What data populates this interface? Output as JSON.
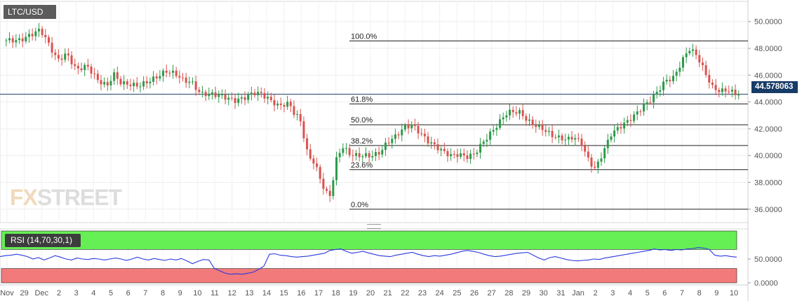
{
  "symbol": "LTC/USD",
  "watermark": {
    "part1": "FX",
    "part2": "STREET"
  },
  "current_price_label": "44.578063",
  "rsi_label": "RSI (14,70,30,1)",
  "colors": {
    "up": "#2e9b4a",
    "down": "#d9534f",
    "rsi_line": "#2b3ae0",
    "overbought": "#66ee55",
    "oversold": "#f27a7a",
    "hline": "#163b66"
  },
  "chart_data": [
    {
      "type": "candlestick",
      "title": "LTC/USD",
      "ylim": [
        35.0,
        51.5
      ],
      "y_ticks": [
        "36.0000",
        "38.0000",
        "40.0000",
        "42.0000",
        "44.0000",
        "46.0000",
        "48.0000",
        "50.0000"
      ],
      "x_ticks": [
        "Nov",
        "29",
        "Dec",
        "2",
        "3",
        "4",
        "5",
        "6",
        "7",
        "8",
        "9",
        "10",
        "11",
        "12",
        "13",
        "14",
        "15",
        "16",
        "17",
        "18",
        "19",
        "20",
        "21",
        "22",
        "23",
        "24",
        "25",
        "26",
        "27",
        "28",
        "29",
        "30",
        "31",
        "Jan",
        "2",
        "3",
        "4",
        "5",
        "6",
        "7",
        "8",
        "9",
        "10"
      ],
      "current_price": 44.578063,
      "fibonacci": [
        {
          "label": "100.0%",
          "value": 48.55
        },
        {
          "label": "61.8%",
          "value": 43.85
        },
        {
          "label": "50.0%",
          "value": 42.3
        },
        {
          "label": "38.2%",
          "value": 40.75
        },
        {
          "label": "23.6%",
          "value": 38.95
        },
        {
          "label": "0.0%",
          "value": 36.0
        }
      ],
      "path": [
        [
          0,
          48.6
        ],
        [
          0.5,
          48.9
        ],
        [
          1.3,
          49.4
        ],
        [
          1.7,
          48.6
        ],
        [
          2.4,
          47.1
        ],
        [
          3,
          47.6
        ],
        [
          3.6,
          46.4
        ],
        [
          4.3,
          46.7
        ],
        [
          5,
          45.6
        ],
        [
          5.6,
          45.2
        ],
        [
          6,
          46.1
        ],
        [
          6.5,
          45.4
        ],
        [
          7.1,
          45.3
        ],
        [
          7.6,
          45.2
        ],
        [
          8.2,
          45.5
        ],
        [
          8.7,
          45.8
        ],
        [
          9.4,
          46.3
        ],
        [
          10,
          46.1
        ],
        [
          10.5,
          45.6
        ],
        [
          11,
          45.5
        ],
        [
          11.6,
          44.6
        ],
        [
          12.2,
          44.6
        ],
        [
          12.8,
          44.5
        ],
        [
          13.3,
          44.3
        ],
        [
          13.8,
          44.1
        ],
        [
          14.4,
          44.3
        ],
        [
          15,
          44.7
        ],
        [
          15.5,
          44.6
        ],
        [
          16,
          44.2
        ],
        [
          16.6,
          43.7
        ],
        [
          17.3,
          43.9
        ],
        [
          17.6,
          43.2
        ],
        [
          18,
          42.7
        ],
        [
          18.5,
          40.0
        ],
        [
          18.9,
          39.5
        ],
        [
          19.2,
          38.6
        ],
        [
          19.6,
          37.3
        ],
        [
          19.9,
          37.0
        ],
        [
          20,
          37.3
        ],
        [
          20.3,
          39.6
        ],
        [
          20.7,
          40.7
        ],
        [
          21.2,
          40.1
        ],
        [
          21.6,
          40.0
        ],
        [
          22.2,
          40.0
        ],
        [
          22.7,
          40.0
        ],
        [
          23.2,
          40.3
        ],
        [
          23.6,
          41.0
        ],
        [
          24.1,
          41.4
        ],
        [
          24.7,
          42.1
        ],
        [
          25.2,
          42.3
        ],
        [
          25.7,
          41.7
        ],
        [
          26.2,
          41.1
        ],
        [
          26.7,
          40.7
        ],
        [
          27.2,
          40.3
        ],
        [
          27.7,
          40.0
        ],
        [
          28.2,
          40.1
        ],
        [
          28.7,
          39.9
        ],
        [
          29.2,
          40.1
        ],
        [
          29.7,
          40.9
        ],
        [
          30.2,
          41.6
        ],
        [
          30.7,
          42.3
        ],
        [
          31.2,
          43.1
        ],
        [
          31.6,
          43.3
        ],
        [
          32.2,
          43.2
        ],
        [
          32.6,
          42.6
        ],
        [
          33.2,
          42.2
        ],
        [
          33.6,
          42.0
        ],
        [
          34.2,
          41.5
        ],
        [
          34.7,
          41.3
        ],
        [
          35.2,
          41.2
        ],
        [
          35.6,
          41.4
        ],
        [
          36.1,
          40.9
        ],
        [
          36.6,
          39.5
        ],
        [
          37,
          39.0
        ],
        [
          37.5,
          40.3
        ],
        [
          38,
          41.6
        ],
        [
          38.5,
          42.1
        ],
        [
          39,
          42.5
        ],
        [
          39.5,
          43.0
        ],
        [
          40,
          43.6
        ],
        [
          40.5,
          44.1
        ],
        [
          41,
          44.8
        ],
        [
          41.5,
          45.6
        ],
        [
          42,
          45.8
        ],
        [
          42.5,
          46.9
        ],
        [
          43,
          48.0
        ],
        [
          43.5,
          47.5
        ],
        [
          44,
          46.3
        ],
        [
          44.5,
          45.1
        ],
        [
          45,
          44.8
        ],
        [
          45.5,
          44.9
        ],
        [
          46,
          44.6
        ]
      ],
      "x_range": [
        -1.3,
        46.8
      ]
    },
    {
      "type": "line",
      "title": "RSI (14,70,30,1)",
      "ylim": [
        0,
        100
      ],
      "y_ticks": [
        "0.0000",
        "50.0000"
      ],
      "bands": {
        "overbought": 70,
        "oversold": 30
      },
      "values": [
        55,
        57,
        58,
        60,
        58,
        55,
        50,
        53,
        48,
        52,
        57,
        54,
        50,
        48,
        52,
        50,
        49,
        51,
        50,
        48,
        50,
        52,
        50,
        47,
        50,
        54,
        50,
        48,
        51,
        49,
        47,
        50,
        48,
        51,
        46,
        40,
        45,
        49,
        48,
        30,
        25,
        20,
        18,
        19,
        18,
        20,
        22,
        28,
        35,
        60,
        61,
        58,
        57,
        55,
        54,
        55,
        56,
        58,
        60,
        62,
        68,
        70,
        71,
        66,
        62,
        64,
        66,
        63,
        60,
        57,
        56,
        55,
        58,
        60,
        62,
        64,
        60,
        57,
        55,
        57,
        56,
        58,
        60,
        63,
        66,
        68,
        66,
        64,
        60,
        57,
        55,
        56,
        58,
        60,
        62,
        63,
        64,
        58,
        52,
        48,
        53,
        55,
        52,
        49,
        47,
        46,
        47,
        48,
        50,
        49,
        52,
        54,
        56,
        58,
        60,
        62,
        64,
        66,
        68,
        71,
        69,
        70,
        68,
        70,
        69,
        71,
        72,
        74,
        73,
        70,
        58,
        56,
        57,
        55,
        54
      ]
    }
  ]
}
